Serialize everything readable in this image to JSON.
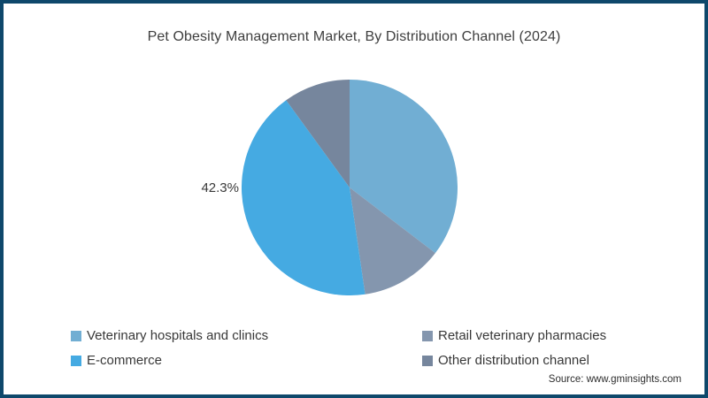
{
  "title": "Pet Obesity Management Market, By Distribution Channel (2024)",
  "source_text": "Source: www.gminsights.com",
  "colors": {
    "frame_border": "#0e486b",
    "title_text": "#3e3e3e"
  },
  "chart_data": {
    "type": "pie",
    "title": "Pet Obesity Management Market, By Distribution Channel (2024)",
    "start_angle_deg": 0,
    "direction": "clockwise",
    "legend_position": "bottom",
    "slices": [
      {
        "label": "Veterinary hospitals and clinics",
        "value": 35.4,
        "color": "#71AED3",
        "data_label": ""
      },
      {
        "label": "Retail veterinary pharmacies",
        "value": 12.3,
        "color": "#8496AE",
        "data_label": ""
      },
      {
        "label": "E-commerce",
        "value": 42.3,
        "color": "#45AAE2",
        "data_label": "42.3%"
      },
      {
        "label": "Other distribution channel",
        "value": 10.0,
        "color": "#76869D",
        "data_label": ""
      }
    ]
  }
}
